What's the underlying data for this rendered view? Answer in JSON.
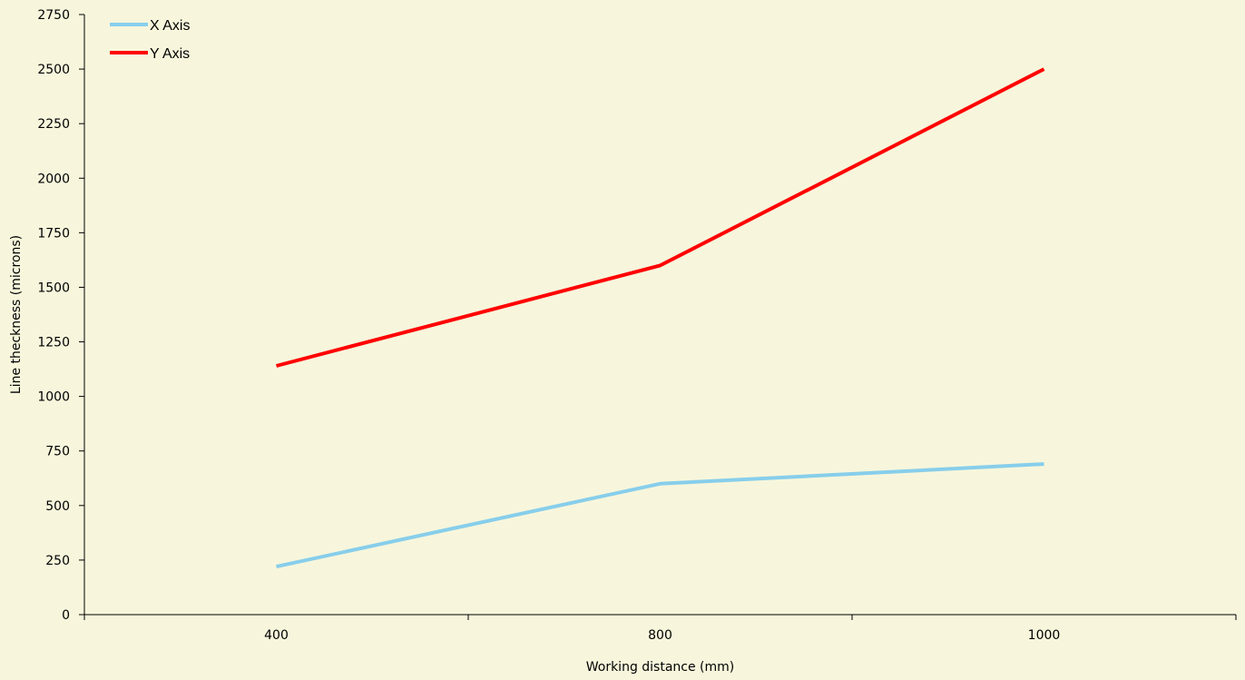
{
  "chart_data": {
    "type": "line",
    "title": "",
    "xlabel": "Working distance (mm)",
    "ylabel": "Line theckness (microns)",
    "categories": [
      "400",
      "800",
      "1000"
    ],
    "ylim": [
      0,
      2750
    ],
    "yticks": [
      0,
      250,
      500,
      750,
      1000,
      1250,
      1500,
      1750,
      2000,
      2250,
      2500,
      2750
    ],
    "grid": false,
    "legend_position": "top-left",
    "series": [
      {
        "name": "X Axis",
        "color": "#87ceeb",
        "values": [
          220,
          600,
          690
        ]
      },
      {
        "name": "Y Axis",
        "color": "#ff0000",
        "values": [
          1140,
          1600,
          2500
        ]
      }
    ]
  }
}
